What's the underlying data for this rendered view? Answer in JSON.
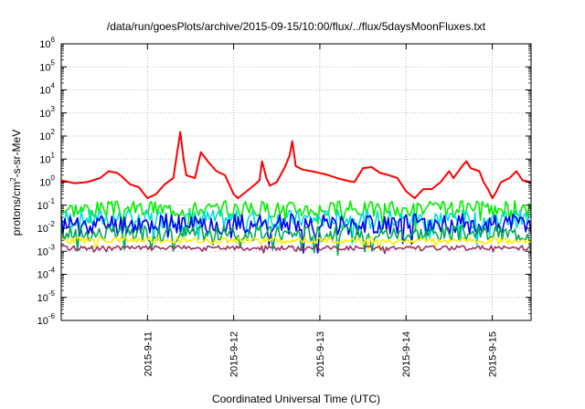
{
  "chart_data": {
    "type": "line",
    "title": "/data/run/goesPlots/archive/2015-09-15/10:00/flux/../flux/5daysMoonFluxes.txt",
    "xlabel": "Coordinated Universal Time (UTC)",
    "ylabel_parts": [
      "protons/cm",
      "2",
      "-s-sr-MeV"
    ],
    "y_scale": "log",
    "ylim_exponents": [
      -6,
      6
    ],
    "y_tick_base": "10",
    "y_tick_exponents": [
      "-6",
      "-5",
      "-4",
      "-3",
      "-2",
      "-1",
      "0",
      "1",
      "2",
      "3",
      "4",
      "5",
      "6"
    ],
    "x_range_days": [
      10.0,
      15.45
    ],
    "x_ticks": [
      {
        "label": "2015-9-11",
        "day": 11
      },
      {
        "label": "2015-9-12",
        "day": 12
      },
      {
        "label": "2015-9-13",
        "day": 13
      },
      {
        "label": "2015-9-14",
        "day": 14
      },
      {
        "label": "2015-9-15",
        "day": 15
      }
    ],
    "grid": true,
    "legend": "none",
    "series": [
      {
        "color": "#ff0000",
        "points": [
          [
            10.0,
            1.2
          ],
          [
            10.15,
            0.9
          ],
          [
            10.3,
            1.0
          ],
          [
            10.45,
            1.5
          ],
          [
            10.55,
            3.0
          ],
          [
            10.65,
            2.5
          ],
          [
            10.7,
            1.8
          ],
          [
            10.8,
            0.8
          ],
          [
            10.9,
            0.6
          ],
          [
            11.0,
            0.2
          ],
          [
            11.1,
            0.3
          ],
          [
            11.2,
            0.8
          ],
          [
            11.3,
            1.5
          ],
          [
            11.38,
            150
          ],
          [
            11.42,
            10
          ],
          [
            11.45,
            2.0
          ],
          [
            11.55,
            1.5
          ],
          [
            11.62,
            20
          ],
          [
            11.7,
            8
          ],
          [
            11.8,
            3
          ],
          [
            11.9,
            2
          ],
          [
            12.0,
            0.3
          ],
          [
            12.05,
            0.2
          ],
          [
            12.15,
            0.4
          ],
          [
            12.25,
            0.8
          ],
          [
            12.3,
            1.2
          ],
          [
            12.33,
            8
          ],
          [
            12.38,
            1.5
          ],
          [
            12.42,
            0.7
          ],
          [
            12.5,
            1.0
          ],
          [
            12.6,
            5
          ],
          [
            12.65,
            15
          ],
          [
            12.68,
            60
          ],
          [
            12.72,
            5
          ],
          [
            12.8,
            3.5
          ],
          [
            12.9,
            3.0
          ],
          [
            13.0,
            2.5
          ],
          [
            13.1,
            2.0
          ],
          [
            13.2,
            1.5
          ],
          [
            13.3,
            1.2
          ],
          [
            13.4,
            1.0
          ],
          [
            13.5,
            4.0
          ],
          [
            13.6,
            4.5
          ],
          [
            13.7,
            2.5
          ],
          [
            13.8,
            2.0
          ],
          [
            13.9,
            1.5
          ],
          [
            14.0,
            0.4
          ],
          [
            14.1,
            0.2
          ],
          [
            14.2,
            0.5
          ],
          [
            14.3,
            0.5
          ],
          [
            14.4,
            1.0
          ],
          [
            14.5,
            3.0
          ],
          [
            14.55,
            1.5
          ],
          [
            14.65,
            5
          ],
          [
            14.7,
            8
          ],
          [
            14.75,
            4
          ],
          [
            14.85,
            3.0
          ],
          [
            14.9,
            1.0
          ],
          [
            14.95,
            0.5
          ],
          [
            15.0,
            0.2
          ],
          [
            15.05,
            0.4
          ],
          [
            15.1,
            1.0
          ],
          [
            15.2,
            1.5
          ],
          [
            15.28,
            3.0
          ],
          [
            15.35,
            1.2
          ],
          [
            15.45,
            1.0
          ]
        ]
      },
      {
        "color": "#00ee00",
        "base": 0.07,
        "jitter": 0.35,
        "seed": 3
      },
      {
        "color": "#00dddd",
        "base": 0.025,
        "jitter": 0.4,
        "seed": 7
      },
      {
        "color": "#0000ee",
        "base": 0.015,
        "jitter": 0.45,
        "seed": 11
      },
      {
        "color": "#00aa55",
        "base": 0.006,
        "jitter": 0.35,
        "seed": 17
      },
      {
        "color": "#ffee00",
        "base": 0.003,
        "jitter": 0.15,
        "seed": 23
      },
      {
        "color": "#993366",
        "base": 0.0014,
        "jitter": 0.1,
        "seed": 29
      }
    ]
  }
}
